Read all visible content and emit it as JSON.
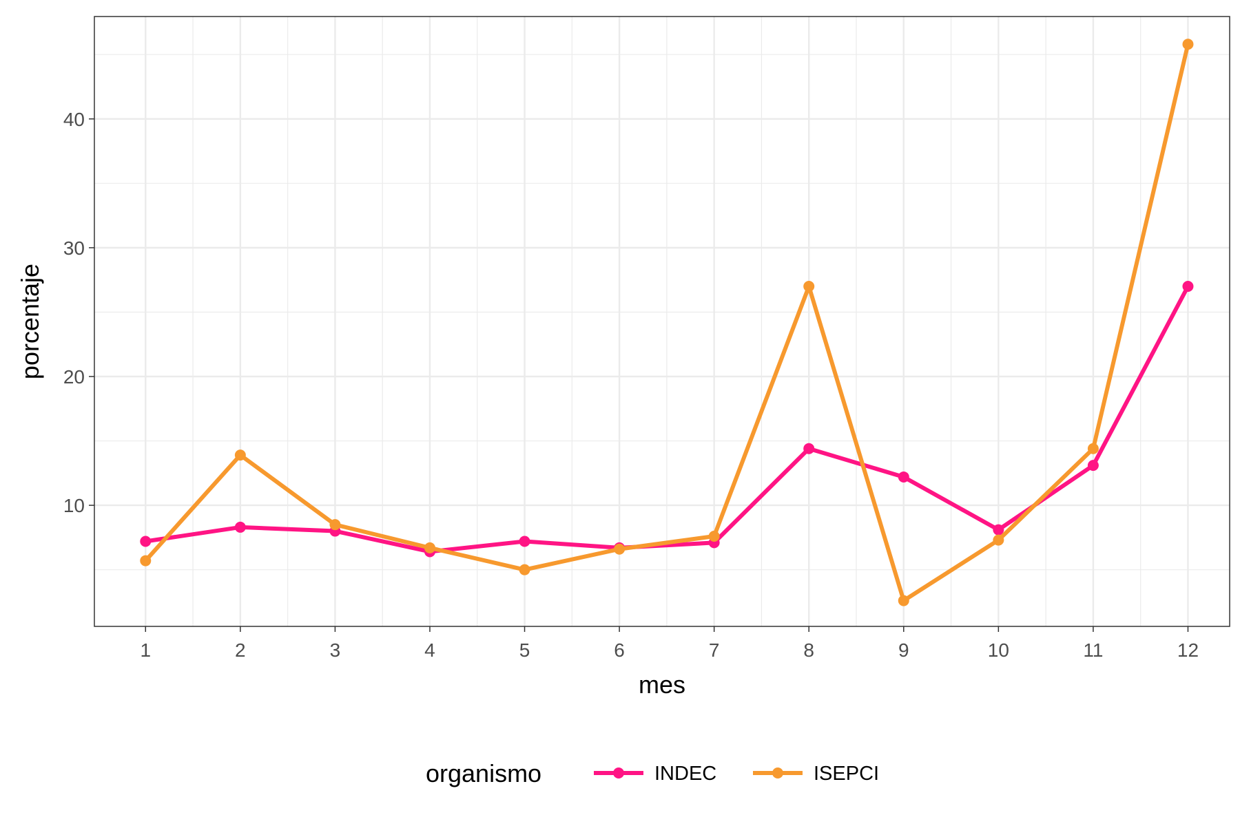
{
  "chart_data": {
    "type": "line",
    "xlabel": "mes",
    "ylabel": "porcentaje",
    "x": [
      1,
      2,
      3,
      4,
      5,
      6,
      7,
      8,
      9,
      10,
      11,
      12
    ],
    "xlim": [
      0.46,
      12.44
    ],
    "ylim": [
      0.6,
      47.95
    ],
    "y_ticks": [
      10,
      20,
      30,
      40
    ],
    "grid": true,
    "legend": {
      "title": "organismo",
      "position": "bottom"
    },
    "series": [
      {
        "name": "INDEC",
        "color": "#FF1484",
        "values": [
          7.2,
          8.3,
          8.0,
          6.4,
          7.2,
          6.7,
          7.1,
          14.4,
          12.2,
          8.1,
          13.1,
          27.0
        ]
      },
      {
        "name": "ISEPCI",
        "color": "#F7992E",
        "values": [
          5.7,
          13.9,
          8.5,
          6.7,
          5.0,
          6.6,
          7.6,
          27.0,
          2.6,
          7.3,
          14.4,
          45.8
        ]
      }
    ]
  }
}
